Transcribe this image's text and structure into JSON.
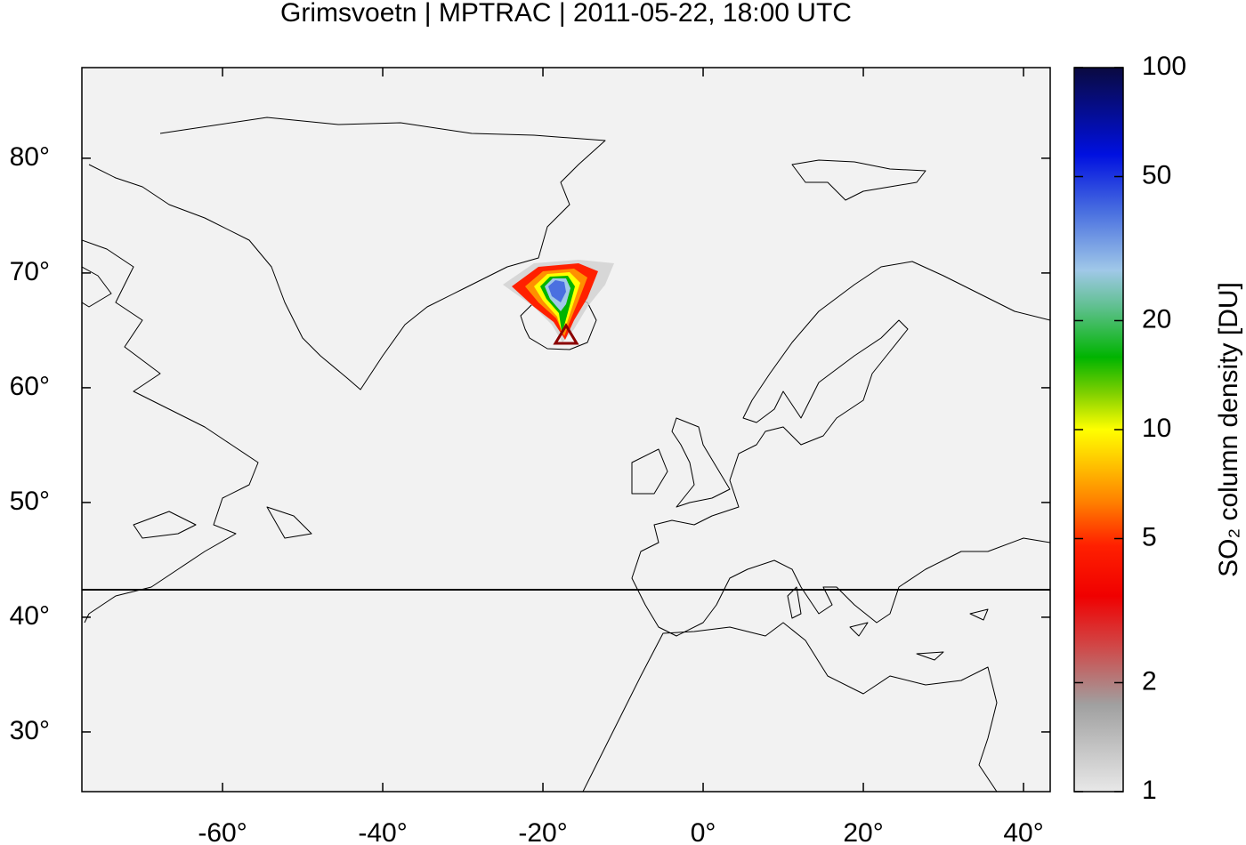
{
  "chart_data": {
    "type": "map",
    "title": "Grimsvoetn | MPTRAC | 2011-05-22, 18:00 UTC",
    "xlim": [
      -77.56,
      43.33
    ],
    "ylim": [
      24.8,
      87.9
    ],
    "xticks": [
      {
        "value": -60,
        "label": "-60°"
      },
      {
        "value": -40,
        "label": "-40°"
      },
      {
        "value": -20,
        "label": "-20°"
      },
      {
        "value": 0,
        "label": "0°"
      },
      {
        "value": 20,
        "label": "20°"
      },
      {
        "value": 40,
        "label": "40°"
      }
    ],
    "yticks": [
      {
        "value": 30,
        "label": "30°"
      },
      {
        "value": 40,
        "label": "40°"
      },
      {
        "value": 50,
        "label": "50°"
      },
      {
        "value": 60,
        "label": "60°"
      },
      {
        "value": 70,
        "label": "70°"
      },
      {
        "value": 80,
        "label": "80°"
      }
    ],
    "colorbar": {
      "label": "SO₂ column density [DU]",
      "lim": [
        1,
        100
      ],
      "log_scale": true,
      "ticks": [
        1,
        2,
        5,
        10,
        20,
        50,
        100
      ]
    }
  }
}
